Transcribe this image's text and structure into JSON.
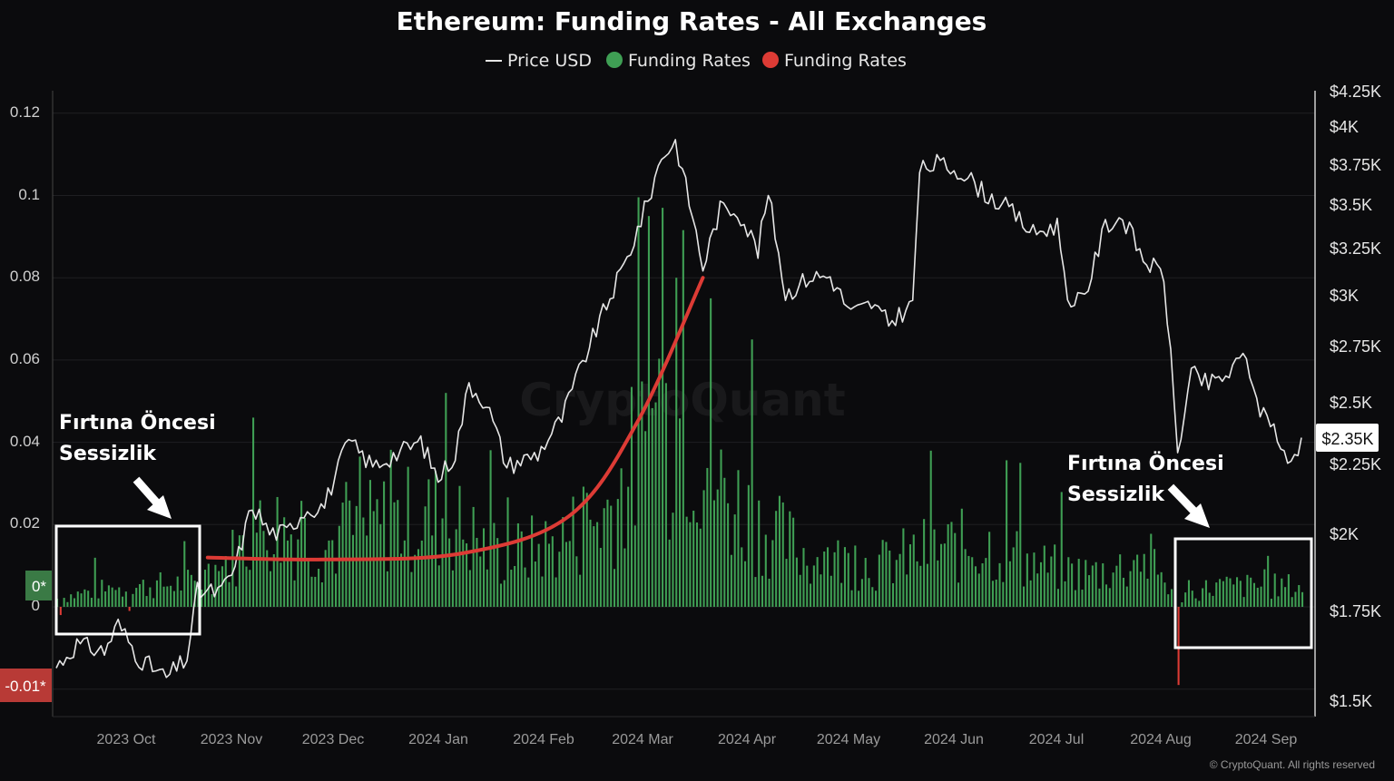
{
  "chart_data": {
    "type": "bar",
    "title": "Ethereum: Funding Rates - All Exchanges",
    "legend": {
      "placement": "top-center",
      "items": [
        {
          "label": "Price USD",
          "color": "#e6e6e6",
          "marker": "line"
        },
        {
          "label": "Funding Rates",
          "color": "#3f9f54",
          "marker": "dot"
        },
        {
          "label": "Funding Rates",
          "color": "#dd3b35",
          "marker": "dot"
        }
      ]
    },
    "left_axis": {
      "ticks": [
        "0.12",
        "0.1",
        "0.08",
        "0.06",
        "0.04",
        "0.02",
        "0"
      ],
      "tick_values": [
        0.12,
        0.1,
        0.08,
        0.06,
        0.04,
        0.02,
        0
      ],
      "range": [
        -0.02,
        0.125
      ],
      "badge_positive": "0*",
      "badge_negative": "-0.01*"
    },
    "right_axis": {
      "ticks": [
        "$4.25K",
        "$4K",
        "$3.75K",
        "$3.5K",
        "$3.25K",
        "$3K",
        "$2.75K",
        "$2.5K",
        "$2.25K",
        "$2K",
        "$1.75K",
        "$1.5K"
      ],
      "tick_values": [
        4250,
        4000,
        3750,
        3500,
        3250,
        3000,
        2750,
        2500,
        2250,
        2000,
        1750,
        1500
      ],
      "scale": "log",
      "current_value_label": "$2.35K",
      "current_value": 2350
    },
    "x_axis": {
      "ticks": [
        "2023 Oct",
        "2023 Nov",
        "2023 Dec",
        "2024 Jan",
        "2024 Feb",
        "2024 Mar",
        "2024 Apr",
        "2024 May",
        "2024 Jun",
        "2024 Jul",
        "2024 Aug",
        "2024 Sep"
      ],
      "range": [
        "2023-09-14",
        "2024-09-10"
      ]
    },
    "funding_series": {
      "name": "Funding Rates",
      "positive_color": "#3f9f54",
      "negative_color": "#dd3b35",
      "anchors": [
        [
          "2023-09-14",
          0.002
        ],
        [
          "2023-09-25",
          0.004
        ],
        [
          "2023-10-10",
          0.005
        ],
        [
          "2023-10-25",
          0.006
        ],
        [
          "2023-11-05",
          0.013
        ],
        [
          "2023-11-15",
          0.02
        ],
        [
          "2023-12-01",
          0.015
        ],
        [
          "2023-12-20",
          0.021
        ],
        [
          "2024-01-05",
          0.022
        ],
        [
          "2024-01-20",
          0.012
        ],
        [
          "2024-02-05",
          0.015
        ],
        [
          "2024-02-20",
          0.022
        ],
        [
          "2024-03-05",
          0.042
        ],
        [
          "2024-03-15",
          0.047
        ],
        [
          "2024-03-25",
          0.028
        ],
        [
          "2024-04-05",
          0.02
        ],
        [
          "2024-04-20",
          0.012
        ],
        [
          "2024-05-10",
          0.01
        ],
        [
          "2024-05-25",
          0.014
        ],
        [
          "2024-06-10",
          0.015
        ],
        [
          "2024-06-25",
          0.01
        ],
        [
          "2024-07-10",
          0.008
        ],
        [
          "2024-07-28",
          0.011
        ],
        [
          "2024-08-05",
          0.002
        ],
        [
          "2024-08-15",
          0.005
        ],
        [
          "2024-09-10",
          0.005
        ]
      ],
      "spikes": [
        [
          "2023-09-15",
          -0.002
        ],
        [
          "2023-10-05",
          -0.001
        ],
        [
          "2023-11-10",
          0.046
        ],
        [
          "2024-01-05",
          0.052
        ],
        [
          "2024-03-04",
          0.095
        ],
        [
          "2024-03-08",
          0.097
        ],
        [
          "2024-03-12",
          0.08
        ],
        [
          "2024-03-22",
          0.075
        ],
        [
          "2024-04-03",
          0.065
        ],
        [
          "2024-06-20",
          0.035
        ],
        [
          "2024-08-05",
          -0.019
        ]
      ]
    },
    "price_series": {
      "name": "Price USD",
      "color": "#e6e6e6",
      "values": [
        [
          "2023-09-14",
          1575
        ],
        [
          "2023-09-20",
          1640
        ],
        [
          "2023-09-28",
          1620
        ],
        [
          "2023-10-02",
          1700
        ],
        [
          "2023-10-08",
          1600
        ],
        [
          "2023-10-16",
          1545
        ],
        [
          "2023-10-22",
          1600
        ],
        [
          "2023-10-25",
          1800
        ],
        [
          "2023-11-01",
          1800
        ],
        [
          "2023-11-05",
          1880
        ],
        [
          "2023-11-10",
          2100
        ],
        [
          "2023-11-15",
          2000
        ],
        [
          "2023-11-20",
          2000
        ],
        [
          "2023-11-25",
          2080
        ],
        [
          "2023-12-01",
          2100
        ],
        [
          "2023-12-08",
          2350
        ],
        [
          "2023-12-15",
          2250
        ],
        [
          "2023-12-22",
          2300
        ],
        [
          "2023-12-29",
          2350
        ],
        [
          "2024-01-03",
          2200
        ],
        [
          "2024-01-08",
          2300
        ],
        [
          "2024-01-12",
          2600
        ],
        [
          "2024-01-17",
          2520
        ],
        [
          "2024-01-23",
          2250
        ],
        [
          "2024-02-01",
          2300
        ],
        [
          "2024-02-08",
          2450
        ],
        [
          "2024-02-14",
          2700
        ],
        [
          "2024-02-20",
          2950
        ],
        [
          "2024-02-27",
          3250
        ],
        [
          "2024-03-04",
          3600
        ],
        [
          "2024-03-08",
          3900
        ],
        [
          "2024-03-12",
          4000
        ],
        [
          "2024-03-16",
          3600
        ],
        [
          "2024-03-20",
          3200
        ],
        [
          "2024-03-25",
          3550
        ],
        [
          "2024-03-30",
          3550
        ],
        [
          "2024-04-05",
          3300
        ],
        [
          "2024-04-08",
          3650
        ],
        [
          "2024-04-13",
          3050
        ],
        [
          "2024-04-20",
          3150
        ],
        [
          "2024-04-26",
          3150
        ],
        [
          "2024-05-02",
          2950
        ],
        [
          "2024-05-08",
          3000
        ],
        [
          "2024-05-13",
          2900
        ],
        [
          "2024-05-20",
          3000
        ],
        [
          "2024-05-22",
          3800
        ],
        [
          "2024-05-27",
          3850
        ],
        [
          "2024-06-03",
          3800
        ],
        [
          "2024-06-10",
          3650
        ],
        [
          "2024-06-17",
          3550
        ],
        [
          "2024-06-24",
          3400
        ],
        [
          "2024-07-01",
          3450
        ],
        [
          "2024-07-05",
          2950
        ],
        [
          "2024-07-10",
          3100
        ],
        [
          "2024-07-15",
          3450
        ],
        [
          "2024-07-20",
          3500
        ],
        [
          "2024-07-26",
          3250
        ],
        [
          "2024-08-01",
          3150
        ],
        [
          "2024-08-05",
          2300
        ],
        [
          "2024-08-09",
          2650
        ],
        [
          "2024-08-14",
          2600
        ],
        [
          "2024-08-20",
          2650
        ],
        [
          "2024-08-25",
          2750
        ],
        [
          "2024-08-28",
          2500
        ],
        [
          "2024-09-01",
          2450
        ],
        [
          "2024-09-06",
          2250
        ],
        [
          "2024-09-10",
          2350
        ]
      ]
    },
    "annotations": [
      {
        "text_lines": [
          "Fırtına Öncesi",
          "Sessizlik"
        ],
        "type": "callout-box",
        "span": [
          "2023-09-14",
          "2023-10-26"
        ]
      },
      {
        "text_lines": [
          "Fırtına Öncesi",
          "Sessizlik"
        ],
        "type": "callout-box",
        "span": [
          "2024-08-07",
          "2024-09-12"
        ]
      },
      {
        "type": "trend-curve",
        "color": "#dd3b35",
        "points": [
          [
            "2023-10-28",
            0.012
          ],
          [
            "2023-12-01",
            0.0115
          ],
          [
            "2024-01-10",
            0.013
          ],
          [
            "2024-02-10",
            0.022
          ],
          [
            "2024-03-01",
            0.045
          ],
          [
            "2024-03-20",
            0.08
          ]
        ]
      }
    ],
    "watermark": "CryptoQuant",
    "copyright": "© CryptoQuant. All rights reserved",
    "grid": true
  }
}
